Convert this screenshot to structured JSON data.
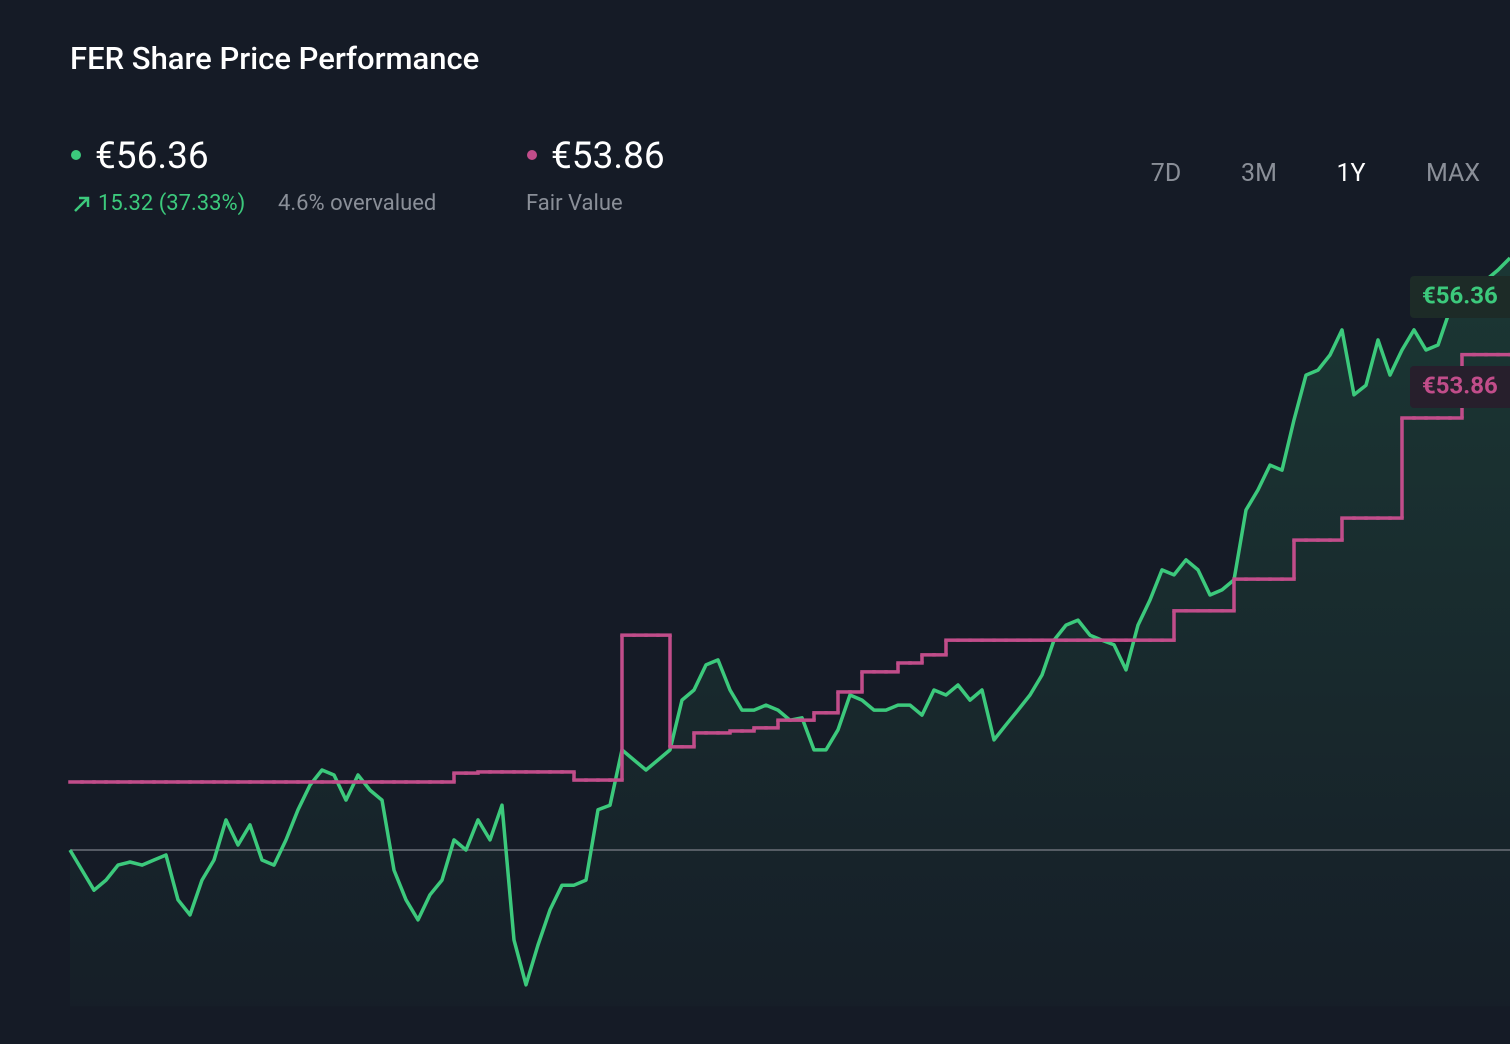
{
  "title": "FER Share Price Performance",
  "summary": {
    "price": "€56.36",
    "change": "15.32 (37.33%)",
    "valuation": "4.6% overvalued",
    "fair_value": "€53.86",
    "fair_value_label": "Fair Value"
  },
  "ranges": [
    "7D",
    "3M",
    "1Y",
    "MAX"
  ],
  "active_range": "1Y",
  "chart_data": {
    "type": "line",
    "ylim": [
      37,
      57
    ],
    "series": [
      {
        "color": "#3cc97c",
        "style": "line",
        "end_label": "€56.36",
        "values": [
          41.04,
          40.52,
          40.0,
          40.26,
          40.65,
          40.73,
          40.65,
          40.78,
          40.91,
          39.75,
          39.36,
          40.26,
          40.78,
          41.82,
          41.17,
          41.69,
          40.78,
          40.65,
          41.3,
          42.08,
          42.72,
          43.11,
          42.98,
          42.33,
          42.98,
          42.59,
          42.33,
          40.52,
          39.75,
          39.23,
          39.88,
          40.26,
          41.3,
          41.04,
          41.82,
          41.3,
          42.2,
          38.71,
          37.55,
          38.58,
          39.49,
          40.13,
          40.13,
          40.26,
          42.08,
          42.2,
          43.63,
          43.37,
          43.11,
          43.37,
          43.63,
          44.92,
          45.18,
          45.83,
          45.96,
          45.18,
          44.66,
          44.66,
          44.79,
          44.66,
          44.4,
          44.46,
          43.63,
          43.63,
          44.15,
          45.05,
          44.92,
          44.66,
          44.66,
          44.79,
          44.79,
          44.53,
          45.18,
          45.05,
          45.31,
          44.92,
          45.18,
          43.89,
          44.28,
          44.66,
          45.05,
          45.57,
          46.47,
          46.86,
          46.99,
          46.6,
          46.47,
          46.35,
          45.7,
          46.86,
          47.51,
          48.29,
          48.16,
          48.55,
          48.29,
          47.64,
          47.77,
          48.03,
          49.84,
          50.36,
          51.0,
          50.87,
          52.17,
          53.33,
          53.46,
          53.85,
          54.5,
          52.82,
          53.07,
          54.24,
          53.33,
          53.98,
          54.5,
          53.98,
          54.11,
          55.02,
          55.53,
          55.53,
          55.79,
          56.05,
          56.36
        ]
      },
      {
        "color": "#c14d8a",
        "style": "step",
        "end_label": "€53.86",
        "values": [
          42.8,
          42.8,
          42.8,
          42.8,
          42.8,
          42.8,
          42.8,
          42.8,
          42.8,
          42.8,
          42.8,
          42.8,
          42.8,
          42.8,
          42.8,
          42.8,
          42.8,
          42.8,
          42.8,
          42.8,
          42.8,
          42.8,
          42.8,
          42.8,
          42.8,
          42.8,
          42.8,
          42.8,
          42.8,
          42.8,
          42.8,
          42.8,
          43.03,
          43.03,
          43.06,
          43.06,
          43.06,
          43.06,
          43.06,
          43.06,
          43.06,
          43.06,
          42.85,
          42.85,
          42.85,
          42.85,
          46.6,
          46.6,
          46.6,
          46.6,
          43.71,
          43.71,
          44.07,
          44.07,
          44.07,
          44.12,
          44.12,
          44.2,
          44.2,
          44.4,
          44.4,
          44.4,
          44.59,
          44.59,
          45.13,
          45.13,
          45.65,
          45.65,
          45.65,
          45.88,
          45.88,
          46.09,
          46.09,
          46.47,
          46.47,
          46.47,
          46.47,
          46.47,
          46.47,
          46.47,
          46.47,
          46.47,
          46.47,
          46.47,
          46.47,
          46.47,
          46.47,
          46.47,
          46.47,
          46.47,
          46.47,
          46.47,
          47.23,
          47.23,
          47.23,
          47.23,
          47.23,
          48.05,
          48.05,
          48.05,
          48.05,
          48.05,
          49.06,
          49.06,
          49.06,
          49.06,
          49.63,
          49.63,
          49.63,
          49.63,
          49.63,
          52.22,
          52.22,
          52.22,
          52.22,
          52.22,
          53.86,
          53.86,
          53.86,
          53.86,
          53.86
        ]
      }
    ]
  }
}
